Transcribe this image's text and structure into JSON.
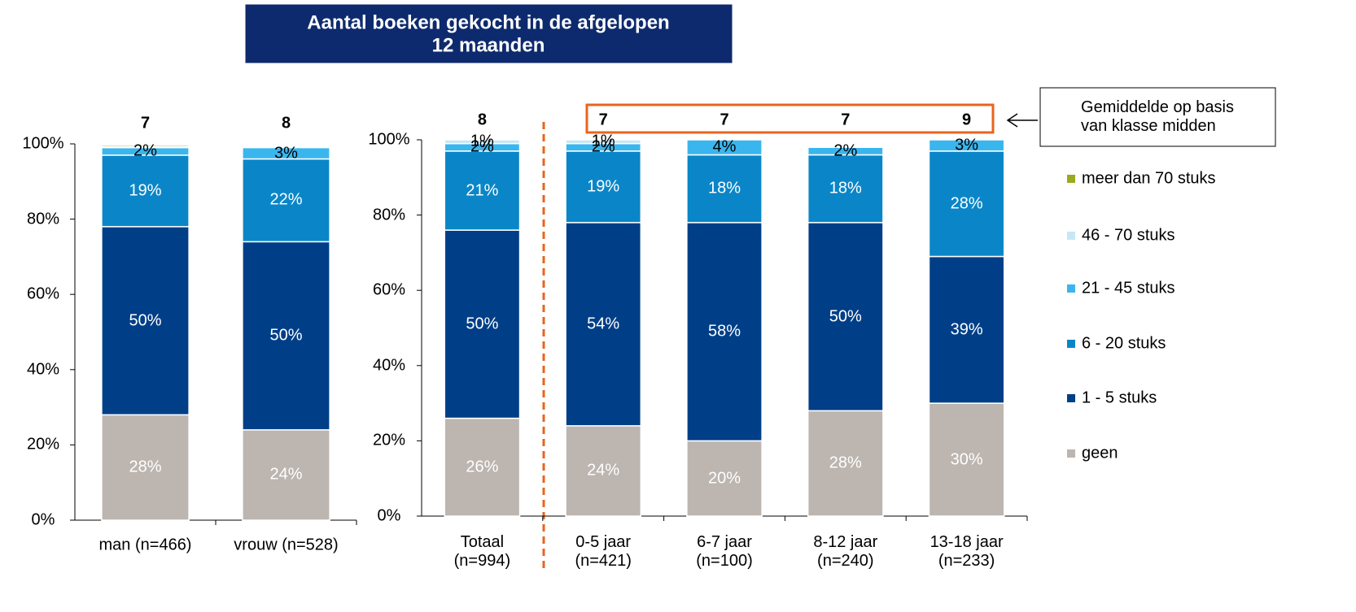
{
  "title": "Aantal boeken gekocht in de afgelopen\n12 maanden",
  "annotation": "Gemiddelde op basis\nvan klasse midden",
  "chart_data": [
    {
      "type": "stacked_bar",
      "categories": [
        "man (n=466)",
        "vrouw (n=528)"
      ],
      "means": [
        7,
        8
      ],
      "ylim": [
        0,
        100
      ],
      "yticks": [
        {
          "value": 0,
          "label": "0%"
        },
        {
          "value": 20,
          "label": "20%"
        },
        {
          "value": 40,
          "label": "40%"
        },
        {
          "value": 60,
          "label": "60%"
        },
        {
          "value": 80,
          "label": "80%"
        },
        {
          "value": 100,
          "label": "100%"
        }
      ],
      "series": [
        {
          "name": "geen",
          "color": "#bcb5b0",
          "values": [
            28,
            24
          ],
          "value_labels": [
            "28%",
            "24%"
          ]
        },
        {
          "name": "1 - 5 stuks",
          "color": "#003f87",
          "values": [
            50,
            50
          ],
          "value_labels": [
            "50%",
            "50%"
          ]
        },
        {
          "name": "6 - 20 stuks",
          "color": "#0a86c8",
          "values": [
            19,
            22
          ],
          "value_labels": [
            "19%",
            "22%"
          ]
        },
        {
          "name": "21 - 45 stuks",
          "color": "#3ab6ef",
          "values": [
            2,
            3
          ],
          "value_labels": [
            "2%",
            "3%"
          ]
        },
        {
          "name": "46 - 70 stuks",
          "color": "#c8e6f5",
          "values": [
            0.3,
            0
          ],
          "value_labels": [
            null,
            null
          ]
        },
        {
          "name": "meer dan 70 stuks",
          "color": "#9aaa1e",
          "values": [
            0.4,
            0
          ],
          "value_labels": [
            null,
            null
          ]
        }
      ]
    },
    {
      "type": "stacked_bar",
      "categories": [
        "Totaal\n(n=994)",
        "0-5 jaar\n(n=421)",
        "6-7 jaar\n(n=100)",
        "8-12 jaar\n(n=240)",
        "13-18 jaar\n(n=233)"
      ],
      "means": [
        8,
        7,
        7,
        7,
        9
      ],
      "ylim": [
        0,
        100
      ],
      "yticks": [
        {
          "value": 0,
          "label": "0%"
        },
        {
          "value": 20,
          "label": "20%"
        },
        {
          "value": 40,
          "label": "40%"
        },
        {
          "value": 60,
          "label": "60%"
        },
        {
          "value": 80,
          "label": "80%"
        },
        {
          "value": 100,
          "label": "100%"
        }
      ],
      "series": [
        {
          "name": "geen",
          "color": "#bcb5b0",
          "values": [
            26,
            24,
            20,
            28,
            30
          ],
          "value_labels": [
            "26%",
            "24%",
            "20%",
            "28%",
            "30%"
          ]
        },
        {
          "name": "1 - 5 stuks",
          "color": "#003f87",
          "values": [
            50,
            54,
            58,
            50,
            39
          ],
          "value_labels": [
            "50%",
            "54%",
            "58%",
            "50%",
            "39%"
          ]
        },
        {
          "name": "6 - 20 stuks",
          "color": "#0a86c8",
          "values": [
            21,
            19,
            18,
            18,
            28
          ],
          "value_labels": [
            "21%",
            "19%",
            "18%",
            "18%",
            "28%"
          ]
        },
        {
          "name": "21 - 45 stuks",
          "color": "#3ab6ef",
          "values": [
            2,
            2,
            4,
            2,
            3
          ],
          "value_labels": [
            "2%",
            "2%",
            "4%",
            "2%",
            "3%"
          ]
        },
        {
          "name": "46 - 70 stuks",
          "color": "#c8e6f5",
          "values": [
            1,
            1,
            0,
            0,
            0
          ],
          "value_labels": [
            "1%",
            "1%",
            null,
            null,
            null
          ]
        },
        {
          "name": "meer dan 70 stuks",
          "color": "#9aaa1e",
          "values": [
            0,
            0,
            0,
            0,
            0
          ],
          "value_labels": [
            null,
            null,
            null,
            null,
            null
          ]
        }
      ]
    }
  ]
}
